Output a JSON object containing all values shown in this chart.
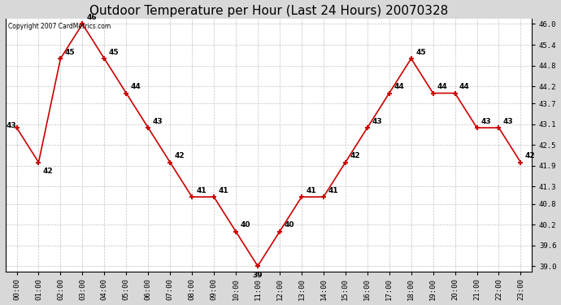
{
  "title": "Outdoor Temperature per Hour (Last 24 Hours) 20070328",
  "copyright_text": "Copyright 2007 CardMetrics.com",
  "hours": [
    0,
    1,
    2,
    3,
    4,
    5,
    6,
    7,
    8,
    9,
    10,
    11,
    12,
    13,
    14,
    15,
    16,
    17,
    18,
    19,
    20,
    21,
    22,
    23
  ],
  "temps": [
    43,
    42,
    45,
    46,
    45,
    44,
    43,
    42,
    41,
    41,
    40,
    39,
    40,
    41,
    41,
    42,
    43,
    44,
    45,
    44,
    44,
    43,
    43,
    42
  ],
  "x_labels": [
    "00:00",
    "01:00",
    "02:00",
    "03:00",
    "04:00",
    "05:00",
    "06:00",
    "07:00",
    "08:00",
    "09:00",
    "10:00",
    "11:00",
    "12:00",
    "13:00",
    "14:00",
    "15:00",
    "16:00",
    "17:00",
    "18:00",
    "19:00",
    "20:00",
    "21:00",
    "22:00",
    "23:00"
  ],
  "y_ticks": [
    39.0,
    39.6,
    40.2,
    40.8,
    41.3,
    41.9,
    42.5,
    43.1,
    43.7,
    44.2,
    44.8,
    45.4,
    46.0
  ],
  "ylim_min": 38.85,
  "ylim_max": 46.15,
  "line_color": "#cc0000",
  "marker_color": "#cc0000",
  "bg_color": "#d8d8d8",
  "plot_bg_color": "#ffffff",
  "grid_color": "#bbbbbb",
  "title_fontsize": 11,
  "label_fontsize": 6.5,
  "tick_fontsize": 6.5,
  "copyright_fontsize": 5.5,
  "label_offsets": {
    "0": [
      0.0,
      0.05,
      "right",
      "center"
    ],
    "1": [
      0.2,
      -0.15,
      "left",
      "top"
    ],
    "2": [
      0.2,
      0.08,
      "left",
      "bottom"
    ],
    "3": [
      0.2,
      0.08,
      "left",
      "bottom"
    ],
    "4": [
      0.2,
      0.08,
      "left",
      "bottom"
    ],
    "5": [
      0.2,
      0.08,
      "left",
      "bottom"
    ],
    "6": [
      0.2,
      0.08,
      "left",
      "bottom"
    ],
    "7": [
      0.2,
      0.08,
      "left",
      "bottom"
    ],
    "8": [
      0.2,
      0.08,
      "left",
      "bottom"
    ],
    "9": [
      0.2,
      0.08,
      "left",
      "bottom"
    ],
    "10": [
      0.2,
      0.08,
      "left",
      "bottom"
    ],
    "11": [
      0.0,
      -0.15,
      "center",
      "top"
    ],
    "12": [
      0.2,
      0.08,
      "left",
      "bottom"
    ],
    "13": [
      0.2,
      0.08,
      "left",
      "bottom"
    ],
    "14": [
      0.2,
      0.08,
      "left",
      "bottom"
    ],
    "15": [
      0.2,
      0.08,
      "left",
      "bottom"
    ],
    "16": [
      0.2,
      0.08,
      "left",
      "bottom"
    ],
    "17": [
      0.2,
      0.08,
      "left",
      "bottom"
    ],
    "18": [
      0.2,
      0.08,
      "left",
      "bottom"
    ],
    "19": [
      0.2,
      0.08,
      "left",
      "bottom"
    ],
    "20": [
      0.2,
      0.08,
      "left",
      "bottom"
    ],
    "21": [
      0.2,
      0.08,
      "left",
      "bottom"
    ],
    "22": [
      0.2,
      0.08,
      "left",
      "bottom"
    ],
    "23": [
      0.2,
      0.08,
      "left",
      "bottom"
    ]
  }
}
